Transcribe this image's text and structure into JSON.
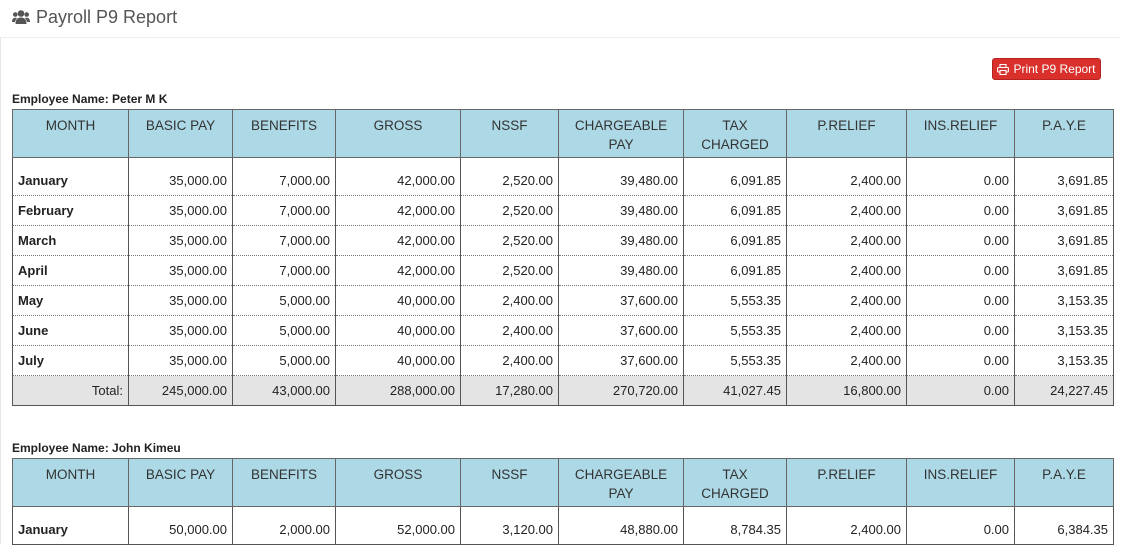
{
  "page": {
    "title": "Payroll P9 Report"
  },
  "actions": {
    "print_label": "Print P9 Report"
  },
  "columns": [
    {
      "line1": "MONTH",
      "line2": ""
    },
    {
      "line1": "BASIC PAY",
      "line2": ""
    },
    {
      "line1": "BENEFITS",
      "line2": ""
    },
    {
      "line1": "GROSS",
      "line2": ""
    },
    {
      "line1": "NSSF",
      "line2": ""
    },
    {
      "line1": "CHARGEABLE",
      "line2": "PAY"
    },
    {
      "line1": "TAX",
      "line2": "CHARGED"
    },
    {
      "line1": "P.RELIEF",
      "line2": ""
    },
    {
      "line1": "INS.RELIEF",
      "line2": ""
    },
    {
      "line1": "P.A.Y.E",
      "line2": ""
    }
  ],
  "employees": [
    {
      "label": "Employee Name: Peter M K",
      "rows": [
        [
          "January",
          "35,000.00",
          "7,000.00",
          "42,000.00",
          "2,520.00",
          "39,480.00",
          "6,091.85",
          "2,400.00",
          "0.00",
          "3,691.85"
        ],
        [
          "February",
          "35,000.00",
          "7,000.00",
          "42,000.00",
          "2,520.00",
          "39,480.00",
          "6,091.85",
          "2,400.00",
          "0.00",
          "3,691.85"
        ],
        [
          "March",
          "35,000.00",
          "7,000.00",
          "42,000.00",
          "2,520.00",
          "39,480.00",
          "6,091.85",
          "2,400.00",
          "0.00",
          "3,691.85"
        ],
        [
          "April",
          "35,000.00",
          "7,000.00",
          "42,000.00",
          "2,520.00",
          "39,480.00",
          "6,091.85",
          "2,400.00",
          "0.00",
          "3,691.85"
        ],
        [
          "May",
          "35,000.00",
          "5,000.00",
          "40,000.00",
          "2,400.00",
          "37,600.00",
          "5,553.35",
          "2,400.00",
          "0.00",
          "3,153.35"
        ],
        [
          "June",
          "35,000.00",
          "5,000.00",
          "40,000.00",
          "2,400.00",
          "37,600.00",
          "5,553.35",
          "2,400.00",
          "0.00",
          "3,153.35"
        ],
        [
          "July",
          "35,000.00",
          "5,000.00",
          "40,000.00",
          "2,400.00",
          "37,600.00",
          "5,553.35",
          "2,400.00",
          "0.00",
          "3,153.35"
        ]
      ],
      "total": [
        "Total:",
        "245,000.00",
        "43,000.00",
        "288,000.00",
        "17,280.00",
        "270,720.00",
        "41,027.45",
        "16,800.00",
        "0.00",
        "24,227.45"
      ]
    },
    {
      "label": "Employee Name: John Kimeu",
      "rows": [
        [
          "January",
          "50,000.00",
          "2,000.00",
          "52,000.00",
          "3,120.00",
          "48,880.00",
          "8,784.35",
          "2,400.00",
          "0.00",
          "6,384.35"
        ]
      ],
      "total": null
    }
  ]
}
